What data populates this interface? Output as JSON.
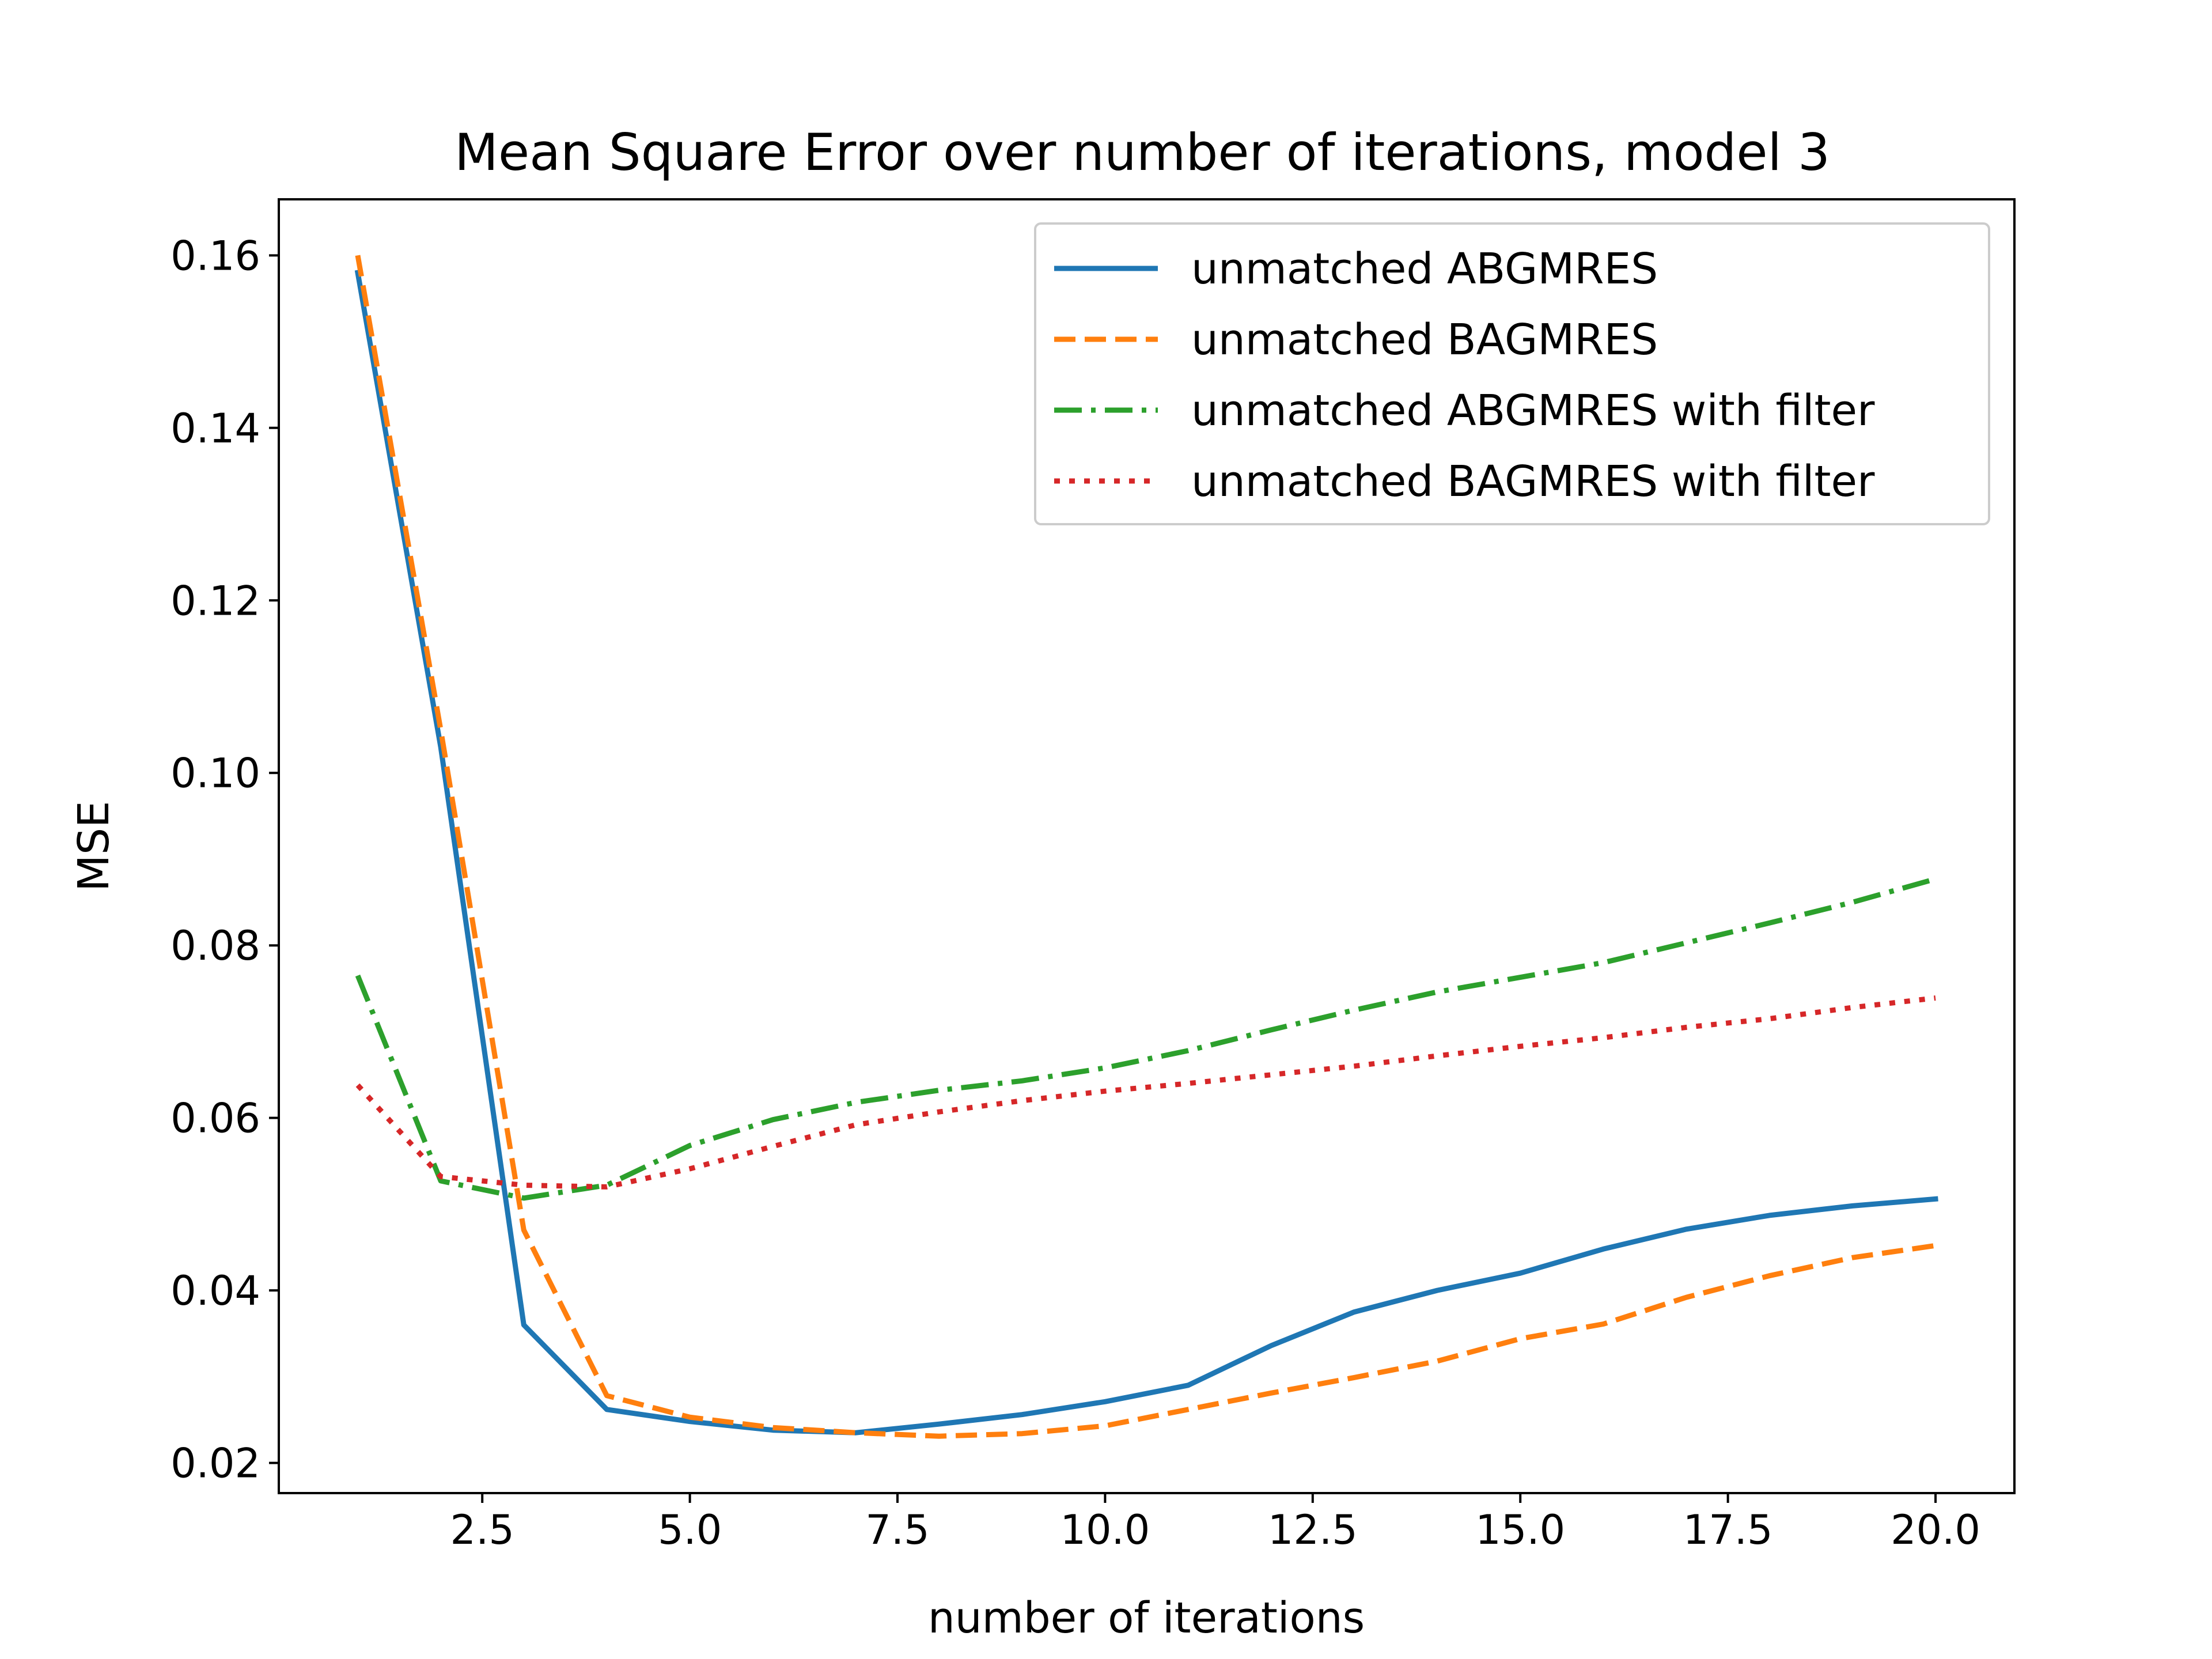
{
  "chart_data": {
    "type": "line",
    "title": "Mean Square Error over number of iterations, model 3",
    "xlabel": "number of iterations",
    "ylabel": "MSE",
    "xlim": [
      0.05,
      20.95
    ],
    "ylim": [
      0.0165,
      0.1665
    ],
    "xticks": [
      2.5,
      5.0,
      7.5,
      10.0,
      12.5,
      15.0,
      17.5,
      20.0
    ],
    "xtick_labels": [
      "2.5",
      "5.0",
      "7.5",
      "10.0",
      "12.5",
      "15.0",
      "17.5",
      "20.0"
    ],
    "yticks": [
      0.02,
      0.04,
      0.06,
      0.08,
      0.1,
      0.12,
      0.14,
      0.16
    ],
    "ytick_labels": [
      "0.02",
      "0.04",
      "0.06",
      "0.08",
      "0.10",
      "0.12",
      "0.14",
      "0.16"
    ],
    "grid": false,
    "legend_position": "top-right",
    "x": [
      1,
      2,
      3,
      4,
      5,
      6,
      7,
      8,
      9,
      10,
      11,
      12,
      13,
      14,
      15,
      16,
      17,
      18,
      19,
      20
    ],
    "series": [
      {
        "name": "unmatched ABGMRES",
        "color": "#1f77b4",
        "dash": "solid",
        "values": [
          0.158,
          0.103,
          0.036,
          0.0262,
          0.0248,
          0.0238,
          0.0235,
          0.0245,
          0.0256,
          0.0271,
          0.029,
          0.0336,
          0.0375,
          0.04,
          0.042,
          0.0448,
          0.0471,
          0.0487,
          0.0498,
          0.0506
        ]
      },
      {
        "name": "unmatched BAGMRES",
        "color": "#ff7f0e",
        "dash": "dashed",
        "values": [
          0.16,
          0.105,
          0.047,
          0.0278,
          0.0253,
          0.0241,
          0.0235,
          0.0231,
          0.0234,
          0.0243,
          0.0262,
          0.0281,
          0.0299,
          0.0318,
          0.0344,
          0.0361,
          0.0392,
          0.0417,
          0.0438,
          0.0452
        ]
      },
      {
        "name": "unmatched ABGMRES with filter",
        "color": "#2ca02c",
        "dash": "dashdot",
        "values": [
          0.0765,
          0.0527,
          0.0507,
          0.0522,
          0.0568,
          0.0598,
          0.0618,
          0.0632,
          0.0643,
          0.0658,
          0.0678,
          0.0702,
          0.0725,
          0.0746,
          0.0763,
          0.078,
          0.0803,
          0.0826,
          0.085,
          0.0877
        ]
      },
      {
        "name": "unmatched BAGMRES with filter",
        "color": "#d62728",
        "dash": "dotted",
        "values": [
          0.0638,
          0.0532,
          0.0522,
          0.052,
          0.0541,
          0.0567,
          0.0592,
          0.0607,
          0.062,
          0.0631,
          0.064,
          0.065,
          0.066,
          0.0672,
          0.0683,
          0.0693,
          0.0705,
          0.0715,
          0.0728,
          0.0739
        ]
      }
    ]
  }
}
